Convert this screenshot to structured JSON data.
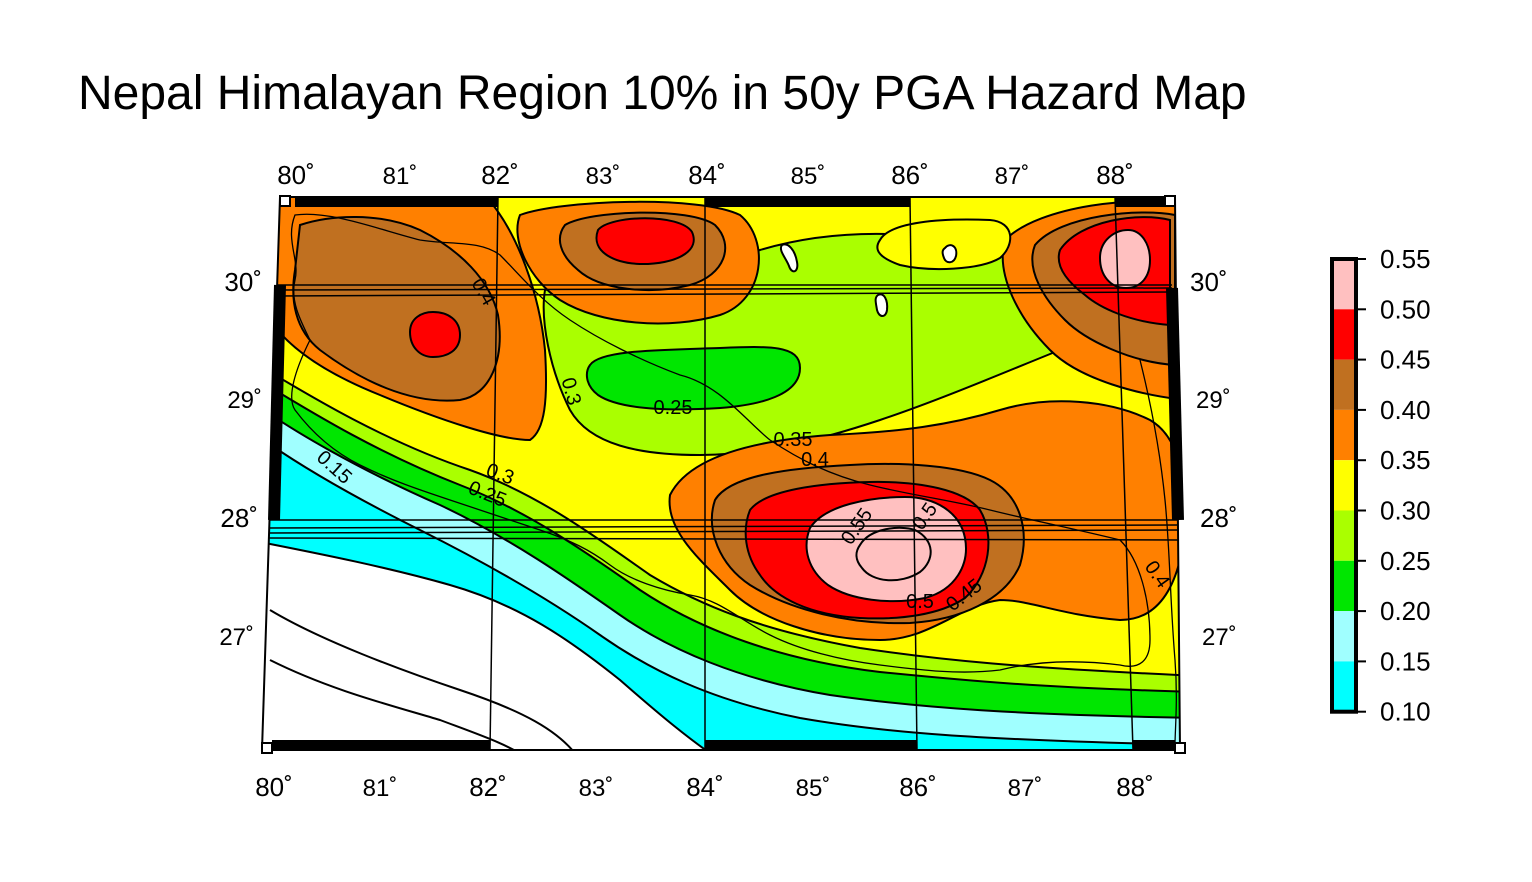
{
  "title": "Nepal Himalayan Region 10% in 50y PGA Hazard Map",
  "map": {
    "longitude_ticks": [
      {
        "label": "80˚",
        "major": true
      },
      {
        "label": "81˚",
        "major": false
      },
      {
        "label": "82˚",
        "major": true
      },
      {
        "label": "83˚",
        "major": false
      },
      {
        "label": "84˚",
        "major": true
      },
      {
        "label": "85˚",
        "major": false
      },
      {
        "label": "86˚",
        "major": true
      },
      {
        "label": "87˚",
        "major": false
      },
      {
        "label": "88˚",
        "major": true
      }
    ],
    "latitude_ticks": [
      {
        "label": "30˚",
        "major": true
      },
      {
        "label": "29˚",
        "major": false
      },
      {
        "label": "28˚",
        "major": true
      },
      {
        "label": "27˚",
        "major": false
      }
    ],
    "contour_labels": [
      "0.4",
      "0.3",
      "0.25",
      "0.35",
      "0.4",
      "0.15",
      "0.3",
      "0.25",
      "0.55",
      "0.5",
      "0.5",
      "0.45",
      "0.4",
      "0.3",
      "0.55"
    ],
    "hazard_colors": {
      "0.10-0.15": "#00ffff",
      "0.15-0.20": "#a0ffff",
      "0.20-0.25": "#00e600",
      "0.25-0.30": "#aaff00",
      "0.30-0.35": "#ffff00",
      "0.35-0.40": "#ff8000",
      "0.40-0.45": "#c07020",
      "0.45-0.50": "#ff0000",
      "0.50-0.55": "#ffc0c0"
    }
  },
  "legend": {
    "labels": [
      "0.55",
      "0.50",
      "0.45",
      "0.40",
      "0.35",
      "0.30",
      "0.25",
      "0.20",
      "0.15",
      "0.10"
    ],
    "colors": [
      "#ffc0c0",
      "#ff0000",
      "#c07020",
      "#ff8000",
      "#ffff00",
      "#aaff00",
      "#00e600",
      "#a0ffff",
      "#00ffff"
    ]
  }
}
